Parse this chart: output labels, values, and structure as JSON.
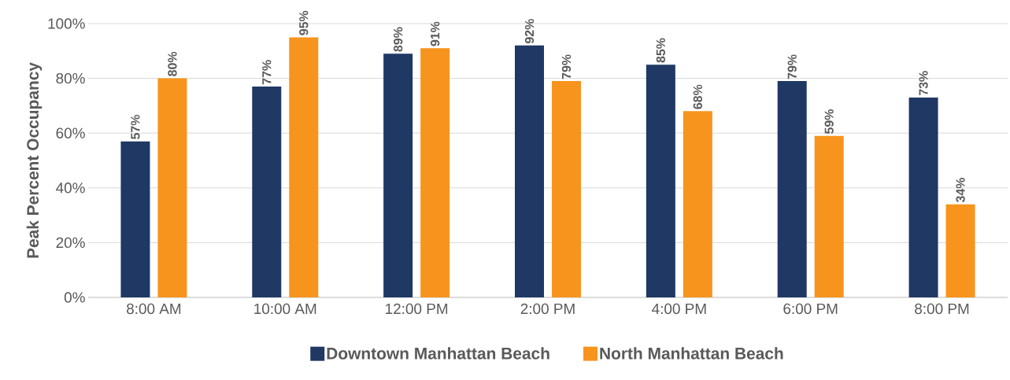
{
  "chart_data": {
    "type": "bar",
    "ylabel": "Peak Percent Occupancy",
    "categories": [
      "8:00 AM",
      "10:00 AM",
      "12:00 PM",
      "2:00 PM",
      "4:00 PM",
      "6:00 PM",
      "8:00 PM"
    ],
    "series": [
      {
        "name": "Downtown Manhattan Beach",
        "color": "#1f3864",
        "values": [
          57,
          77,
          89,
          92,
          85,
          79,
          73
        ],
        "value_labels": [
          "57%",
          "77%",
          "89%",
          "92%",
          "85%",
          "79%",
          "73%"
        ]
      },
      {
        "name": "North Manhattan Beach",
        "color": "#f7941d",
        "values": [
          80,
          95,
          91,
          79,
          68,
          59,
          34
        ],
        "value_labels": [
          "80%",
          "95%",
          "91%",
          "79%",
          "68%",
          "59%",
          "34%"
        ]
      }
    ],
    "ylim": [
      0,
      100
    ],
    "yticks": [
      {
        "value": 0,
        "label": "0%"
      },
      {
        "value": 20,
        "label": "20%"
      },
      {
        "value": 40,
        "label": "40%"
      },
      {
        "value": 60,
        "label": "60%"
      },
      {
        "value": 80,
        "label": "80%"
      },
      {
        "value": 100,
        "label": "100%"
      }
    ],
    "grid": "y",
    "legend": "bottom"
  }
}
